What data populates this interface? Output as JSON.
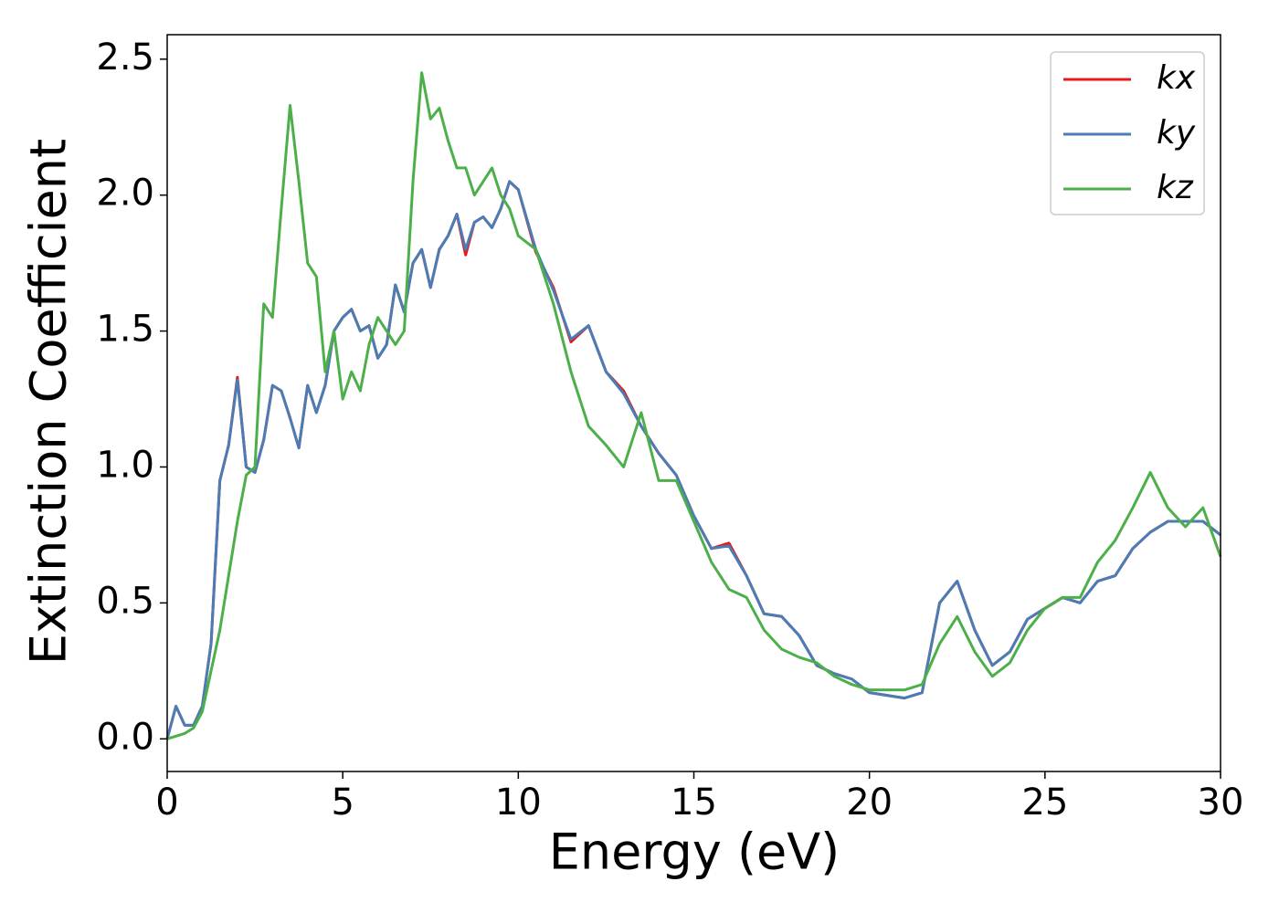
{
  "chart_data": {
    "type": "line",
    "xlabel": "Energy (eV)",
    "ylabel": "Extinction Coefficient",
    "x": [
      0,
      0.25,
      0.5,
      0.75,
      1,
      1.25,
      1.5,
      1.75,
      2,
      2.25,
      2.5,
      2.75,
      3,
      3.25,
      3.5,
      3.75,
      4,
      4.25,
      4.5,
      4.75,
      5,
      5.25,
      5.5,
      5.75,
      6,
      6.25,
      6.5,
      6.75,
      7,
      7.25,
      7.5,
      7.75,
      8,
      8.25,
      8.5,
      8.75,
      9,
      9.25,
      9.5,
      9.75,
      10,
      10.5,
      11,
      11.5,
      12,
      12.5,
      13,
      13.5,
      14,
      14.5,
      15,
      15.5,
      16,
      16.5,
      17,
      17.5,
      18,
      18.5,
      19,
      19.5,
      20,
      20.5,
      21,
      21.5,
      22,
      22.5,
      23,
      23.5,
      24,
      24.5,
      25,
      25.5,
      26,
      26.5,
      27,
      27.5,
      28,
      28.5,
      29,
      29.5,
      30
    ],
    "series": [
      {
        "name": "kx",
        "color": "#e41a1c",
        "values": [
          0,
          0.12,
          0.05,
          0.05,
          0.12,
          0.35,
          0.95,
          1.08,
          1.33,
          1.0,
          0.98,
          1.1,
          1.3,
          1.28,
          1.18,
          1.07,
          1.3,
          1.2,
          1.3,
          1.5,
          1.55,
          1.58,
          1.5,
          1.52,
          1.4,
          1.45,
          1.67,
          1.57,
          1.75,
          1.8,
          1.66,
          1.8,
          1.85,
          1.93,
          1.78,
          1.9,
          1.92,
          1.88,
          1.95,
          2.05,
          2.02,
          1.79,
          1.66,
          1.46,
          1.52,
          1.35,
          1.28,
          1.15,
          1.05,
          0.97,
          0.82,
          0.7,
          0.72,
          0.6,
          0.46,
          0.45,
          0.38,
          0.27,
          0.24,
          0.22,
          0.17,
          0.16,
          0.15,
          0.17,
          0.5,
          0.58,
          0.4,
          0.27,
          0.32,
          0.44,
          0.48,
          0.52,
          0.5,
          0.58,
          0.6,
          0.7,
          0.76,
          0.8,
          0.8,
          0.8,
          0.75
        ]
      },
      {
        "name": "ky",
        "color": "#4a7db5",
        "values": [
          0,
          0.12,
          0.05,
          0.05,
          0.12,
          0.35,
          0.95,
          1.08,
          1.32,
          1.0,
          0.98,
          1.1,
          1.3,
          1.28,
          1.18,
          1.07,
          1.3,
          1.2,
          1.3,
          1.5,
          1.55,
          1.58,
          1.5,
          1.52,
          1.4,
          1.45,
          1.67,
          1.57,
          1.75,
          1.8,
          1.66,
          1.8,
          1.85,
          1.93,
          1.8,
          1.9,
          1.92,
          1.88,
          1.95,
          2.05,
          2.02,
          1.8,
          1.65,
          1.47,
          1.52,
          1.35,
          1.27,
          1.15,
          1.05,
          0.97,
          0.82,
          0.7,
          0.71,
          0.6,
          0.46,
          0.45,
          0.38,
          0.27,
          0.24,
          0.22,
          0.17,
          0.16,
          0.15,
          0.17,
          0.5,
          0.58,
          0.4,
          0.27,
          0.32,
          0.44,
          0.48,
          0.52,
          0.5,
          0.58,
          0.6,
          0.7,
          0.76,
          0.8,
          0.8,
          0.8,
          0.75
        ]
      },
      {
        "name": "kz",
        "color": "#4daf4a",
        "values": [
          0,
          0.01,
          0.02,
          0.04,
          0.1,
          0.25,
          0.4,
          0.6,
          0.8,
          0.97,
          1.0,
          1.6,
          1.55,
          1.95,
          2.33,
          2.05,
          1.75,
          1.7,
          1.35,
          1.5,
          1.25,
          1.35,
          1.28,
          1.45,
          1.55,
          1.5,
          1.45,
          1.5,
          2.05,
          2.45,
          2.28,
          2.32,
          2.2,
          2.1,
          2.1,
          2.0,
          2.05,
          2.1,
          2.0,
          1.95,
          1.85,
          1.8,
          1.6,
          1.35,
          1.15,
          1.08,
          1.0,
          1.2,
          0.95,
          0.95,
          0.8,
          0.65,
          0.55,
          0.52,
          0.4,
          0.33,
          0.3,
          0.28,
          0.23,
          0.2,
          0.18,
          0.18,
          0.18,
          0.2,
          0.35,
          0.45,
          0.32,
          0.23,
          0.28,
          0.4,
          0.48,
          0.52,
          0.52,
          0.65,
          0.73,
          0.85,
          0.98,
          0.85,
          0.78,
          0.85,
          0.67
        ]
      }
    ],
    "xlim": [
      0,
      30
    ],
    "xticks": [
      0,
      5,
      10,
      15,
      20,
      25,
      30
    ],
    "ylim": [
      -0.12,
      2.59
    ],
    "yticks": [
      {
        "value": 0,
        "label": "0.0"
      },
      0.5,
      {
        "value": 1,
        "label": "1.0"
      },
      1.5,
      {
        "value": 2,
        "label": "2.0"
      },
      2.5
    ],
    "legend": "upper right",
    "grid": false
  }
}
